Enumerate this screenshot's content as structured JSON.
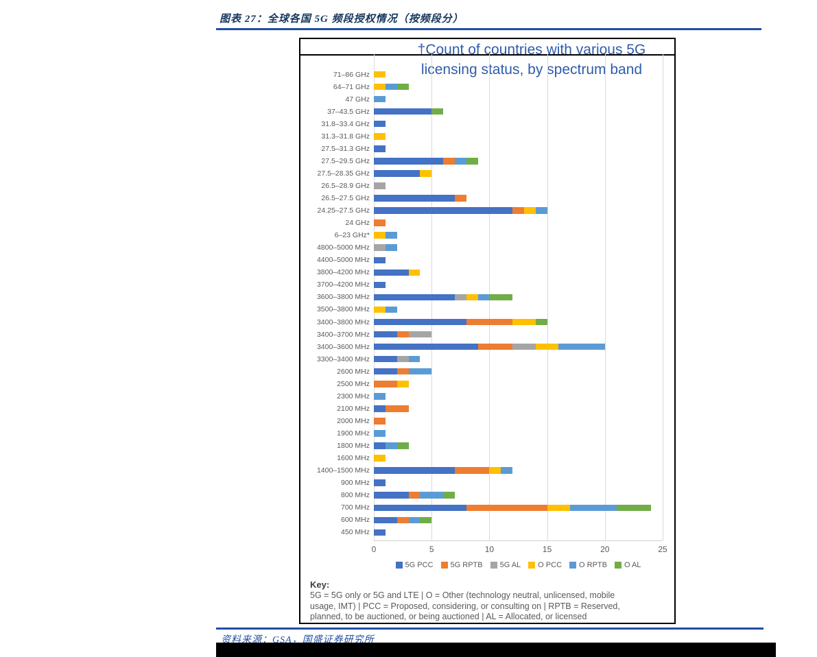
{
  "page": {
    "report_title": "图表 27：全球各国 5G 频段授权情况（按频段分）",
    "source_line": "资料来源：GSA，国盛证券研究所"
  },
  "chart_data": {
    "type": "bar",
    "orientation": "horizontal",
    "stacked": true,
    "title": "†Count of countries with various 5G licensing status, by spectrum band",
    "title_lines": [
      "†Count of countries with various 5G",
      "licensing status, by spectrum band"
    ],
    "title_color": "#2f5cab",
    "xlim": [
      0,
      25
    ],
    "x_ticks": [
      0,
      5,
      10,
      15,
      20,
      25
    ],
    "grid": "vertical",
    "legend_position": "bottom",
    "categories": [
      "71–86 GHz",
      "64–71 GHz",
      "47 GHz",
      "37–43.5 GHz",
      "31.8–33.4 GHz",
      "31.3–31.8 GHz",
      "27.5–31.3 GHz",
      "27.5–29.5 GHz",
      "27.5–28.35 GHz",
      "26.5–28.9 GHz",
      "26.5–27.5 GHz",
      "24.25–27.5 GHz",
      "24 GHz",
      "6–23 GHz*",
      "4800–5000 MHz",
      "4400–5000 MHz",
      "3800–4200 MHz",
      "3700–4200 MHz",
      "3600–3800 MHz",
      "3500–3800 MHz",
      "3400–3800 MHz",
      "3400–3700 MHz",
      "3400–3600 MHz",
      "3300–3400 MHz",
      "2600 MHz",
      "2500 MHz",
      "2300 MHz",
      "2100 MHz",
      "2000 MHz",
      "1900 MHz",
      "1800 MHz",
      "1600 MHz",
      "1400–1500 MHz",
      "900 MHz",
      "800 MHz",
      "700 MHz",
      "600 MHz",
      "450 MHz"
    ],
    "series": [
      {
        "name": "5G PCC",
        "color": "#4472C4",
        "values": [
          0,
          0,
          0,
          5,
          1,
          0,
          1,
          6,
          4,
          0,
          7,
          12,
          0,
          0,
          0,
          1,
          3,
          1,
          7,
          0,
          8,
          2,
          9,
          2,
          2,
          0,
          0,
          1,
          0,
          0,
          1,
          0,
          7,
          1,
          3,
          8,
          2,
          1
        ]
      },
      {
        "name": "5G RPTB",
        "color": "#ED7D31",
        "values": [
          0,
          0,
          0,
          0,
          0,
          0,
          0,
          1,
          0,
          0,
          1,
          1,
          1,
          0,
          0,
          0,
          0,
          0,
          0,
          0,
          4,
          1,
          3,
          0,
          1,
          2,
          0,
          2,
          1,
          0,
          0,
          0,
          3,
          0,
          1,
          7,
          1,
          0
        ]
      },
      {
        "name": "5G AL",
        "color": "#A5A5A5",
        "values": [
          0,
          0,
          0,
          0,
          0,
          0,
          0,
          0,
          0,
          1,
          0,
          0,
          0,
          0,
          1,
          0,
          0,
          0,
          1,
          0,
          0,
          2,
          2,
          1,
          0,
          0,
          0,
          0,
          0,
          0,
          0,
          0,
          0,
          0,
          0,
          0,
          0,
          0
        ]
      },
      {
        "name": "O PCC",
        "color": "#FFC000",
        "values": [
          1,
          1,
          0,
          0,
          0,
          1,
          0,
          0,
          1,
          0,
          0,
          1,
          0,
          1,
          0,
          0,
          1,
          0,
          1,
          1,
          2,
          0,
          2,
          0,
          0,
          1,
          0,
          0,
          0,
          0,
          0,
          1,
          1,
          0,
          0,
          2,
          0,
          0
        ]
      },
      {
        "name": "O RPTB",
        "color": "#5B9BD5",
        "values": [
          0,
          1,
          1,
          0,
          0,
          0,
          0,
          1,
          0,
          0,
          0,
          1,
          0,
          1,
          1,
          0,
          0,
          0,
          1,
          1,
          0,
          0,
          4,
          1,
          2,
          0,
          1,
          0,
          0,
          1,
          1,
          0,
          1,
          0,
          2,
          4,
          1,
          0
        ]
      },
      {
        "name": "O AL",
        "color": "#70AD47",
        "values": [
          0,
          1,
          0,
          1,
          0,
          0,
          0,
          1,
          0,
          0,
          0,
          0,
          0,
          0,
          0,
          0,
          0,
          0,
          2,
          0,
          1,
          0,
          0,
          0,
          0,
          0,
          0,
          0,
          0,
          0,
          1,
          0,
          0,
          0,
          1,
          3,
          1,
          0
        ]
      }
    ],
    "key": {
      "heading": "Key:",
      "lines": [
        "5G = 5G only or 5G and LTE  |  O = Other (technology neutral, unlicensed, mobile",
        "usage, IMT)  |  PCC = Proposed, considering, or consulting on  |  RPTB = Reserved,",
        "planned, to be auctioned, or being auctioned  |  AL = Allocated, or licensed"
      ]
    }
  }
}
